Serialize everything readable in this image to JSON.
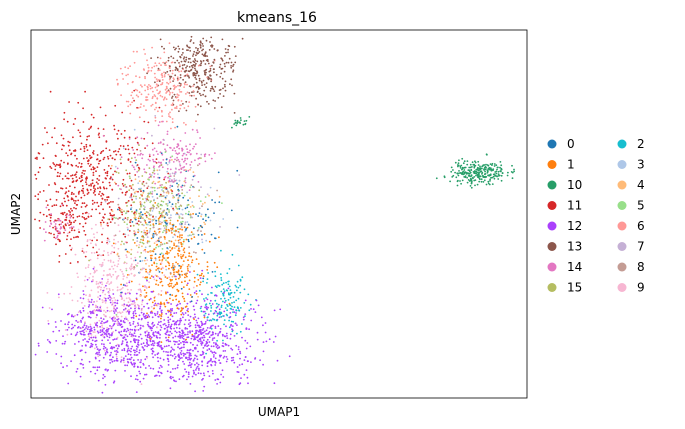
{
  "chart_data": {
    "type": "scatter",
    "title": "kmeans_16",
    "xlabel": "UMAP1",
    "ylabel": "UMAP2",
    "grid": false,
    "ticks_visible": false,
    "legend_placement": "right, outside plot, 2 columns",
    "series": [
      {
        "name": "0",
        "color": "#1f77b4",
        "region": "scattered center"
      },
      {
        "name": "1",
        "color": "#ff7f0e",
        "region": "center-lower"
      },
      {
        "name": "10",
        "color": "#279e68",
        "region": "far right island"
      },
      {
        "name": "11",
        "color": "#d62728",
        "region": "left"
      },
      {
        "name": "12",
        "color": "#aa40fc",
        "region": "bottom"
      },
      {
        "name": "13",
        "color": "#8c564b",
        "region": "top"
      },
      {
        "name": "14",
        "color": "#e377c2",
        "region": "center-upper"
      },
      {
        "name": "15",
        "color": "#b5bd61",
        "region": "center"
      },
      {
        "name": "2",
        "color": "#17becf",
        "region": "right-lower"
      },
      {
        "name": "3",
        "color": "#aec7e8",
        "region": "center"
      },
      {
        "name": "4",
        "color": "#ffbb78",
        "region": "center"
      },
      {
        "name": "5",
        "color": "#98df8a",
        "region": "center"
      },
      {
        "name": "6",
        "color": "#ff9896",
        "region": "top-left"
      },
      {
        "name": "7",
        "color": "#c5b0d5",
        "region": "center"
      },
      {
        "name": "8",
        "color": "#c49c94",
        "region": "center"
      },
      {
        "name": "9",
        "color": "#f7b6d2",
        "region": "left-lower"
      }
    ]
  }
}
